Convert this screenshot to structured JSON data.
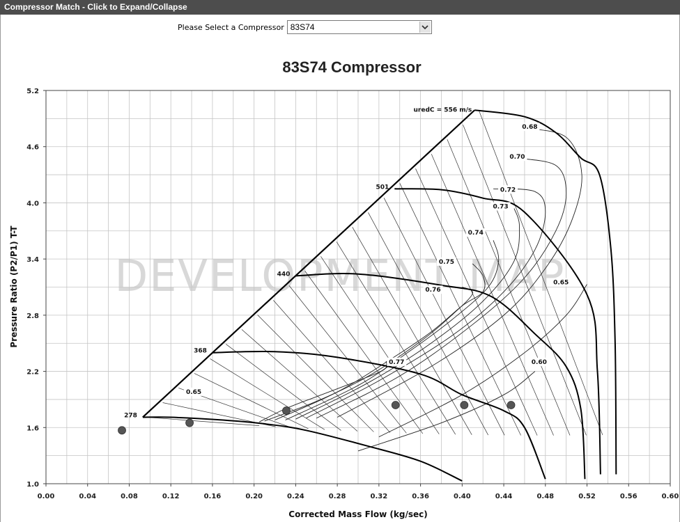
{
  "window": {
    "title": "Compressor Match - Click to Expand/Collapse"
  },
  "selector": {
    "label": "Please Select a Compressor",
    "value": "83S74"
  },
  "watermark": "DEVELOPMENT MAP",
  "chart_data": {
    "type": "line",
    "title": "83S74 Compressor",
    "xlabel": "Corrected Mass Flow (kg/sec)",
    "ylabel": "Pressure Ratio (P2/P1) T-T",
    "xlim": [
      0.0,
      0.6
    ],
    "ylim": [
      1.0,
      5.2
    ],
    "x_ticks": [
      "0.00",
      "0.04",
      "0.08",
      "0.12",
      "0.16",
      "0.20",
      "0.24",
      "0.28",
      "0.32",
      "0.36",
      "0.40",
      "0.44",
      "0.48",
      "0.52",
      "0.56",
      "0.60"
    ],
    "y_ticks": [
      "1.0",
      "1.6",
      "2.2",
      "2.8",
      "3.4",
      "4.0",
      "4.6",
      "5.2"
    ],
    "grid": true,
    "surge_line": [
      [
        0.093,
        1.71
      ],
      [
        0.412,
        4.99
      ]
    ],
    "speed_lines": [
      {
        "label": "278",
        "points": [
          [
            0.093,
            1.71
          ],
          [
            0.12,
            1.71
          ],
          [
            0.17,
            1.68
          ],
          [
            0.21,
            1.64
          ],
          [
            0.25,
            1.57
          ],
          [
            0.31,
            1.4
          ],
          [
            0.36,
            1.24
          ],
          [
            0.4,
            1.03
          ]
        ]
      },
      {
        "label": "368",
        "points": [
          [
            0.16,
            2.4
          ],
          [
            0.22,
            2.41
          ],
          [
            0.28,
            2.35
          ],
          [
            0.36,
            2.17
          ],
          [
            0.4,
            1.95
          ],
          [
            0.44,
            1.78
          ],
          [
            0.46,
            1.6
          ],
          [
            0.48,
            1.05
          ]
        ]
      },
      {
        "label": "440",
        "points": [
          [
            0.24,
            3.22
          ],
          [
            0.3,
            3.24
          ],
          [
            0.38,
            3.12
          ],
          [
            0.428,
            3.0
          ],
          [
            0.47,
            2.6
          ],
          [
            0.5,
            2.25
          ],
          [
            0.514,
            1.8
          ],
          [
            0.518,
            1.05
          ]
        ]
      },
      {
        "label": "501",
        "points": [
          [
            0.335,
            4.15
          ],
          [
            0.38,
            4.14
          ],
          [
            0.42,
            4.05
          ],
          [
            0.46,
            3.9
          ],
          [
            0.52,
            3.02
          ],
          [
            0.53,
            2.2
          ],
          [
            0.533,
            1.1
          ]
        ]
      },
      {
        "label": "uredC = 556 m/s",
        "points": [
          [
            0.412,
            4.99
          ],
          [
            0.46,
            4.92
          ],
          [
            0.49,
            4.75
          ],
          [
            0.514,
            4.48
          ],
          [
            0.532,
            4.3
          ],
          [
            0.543,
            3.5
          ],
          [
            0.547,
            2.5
          ],
          [
            0.548,
            1.1
          ]
        ]
      }
    ],
    "efficiency_islands": [
      {
        "label": "0.77",
        "label_at": [
          0.337,
          2.28
        ],
        "points": [
          [
            0.205,
            1.66
          ],
          [
            0.23,
            1.8
          ],
          [
            0.26,
            1.93
          ],
          [
            0.3,
            2.1
          ],
          [
            0.325,
            2.22
          ],
          [
            0.327,
            2.31
          ]
        ]
      },
      {
        "label": "0.76",
        "label_at": [
          0.372,
          3.05
        ],
        "points": [
          [
            0.21,
            1.67
          ],
          [
            0.26,
            1.88
          ],
          [
            0.31,
            2.15
          ],
          [
            0.36,
            2.52
          ],
          [
            0.39,
            2.8
          ],
          [
            0.41,
            3.03
          ],
          [
            0.4,
            3.1
          ]
        ]
      },
      {
        "label": "0.75",
        "label_at": [
          0.385,
          3.35
        ],
        "points": [
          [
            0.22,
            1.68
          ],
          [
            0.28,
            1.98
          ],
          [
            0.33,
            2.32
          ],
          [
            0.37,
            2.62
          ],
          [
            0.4,
            2.9
          ],
          [
            0.42,
            3.05
          ],
          [
            0.42,
            3.22
          ],
          [
            0.41,
            3.35
          ]
        ]
      },
      {
        "label": "0.74",
        "label_at": [
          0.413,
          3.66
        ],
        "points": [
          [
            0.23,
            1.68
          ],
          [
            0.3,
            2.05
          ],
          [
            0.35,
            2.42
          ],
          [
            0.39,
            2.75
          ],
          [
            0.425,
            3.1
          ],
          [
            0.435,
            3.38
          ],
          [
            0.43,
            3.6
          ]
        ]
      },
      {
        "label": "0.73",
        "label_at": [
          0.437,
          3.94
        ],
        "points": [
          [
            0.24,
            1.69
          ],
          [
            0.31,
            2.08
          ],
          [
            0.37,
            2.5
          ],
          [
            0.42,
            2.95
          ],
          [
            0.45,
            3.38
          ],
          [
            0.455,
            3.75
          ],
          [
            0.45,
            3.94
          ]
        ]
      },
      {
        "label": "0.72",
        "label_at": [
          0.444,
          4.12
        ],
        "points": [
          [
            0.25,
            1.7
          ],
          [
            0.32,
            2.1
          ],
          [
            0.39,
            2.58
          ],
          [
            0.44,
            3.05
          ],
          [
            0.47,
            3.5
          ],
          [
            0.48,
            3.9
          ],
          [
            0.47,
            4.12
          ],
          [
            0.43,
            4.15
          ]
        ]
      },
      {
        "label": "0.70",
        "label_at": [
          0.453,
          4.47
        ],
        "points": [
          [
            0.26,
            1.7
          ],
          [
            0.34,
            2.15
          ],
          [
            0.41,
            2.7
          ],
          [
            0.46,
            3.2
          ],
          [
            0.49,
            3.7
          ],
          [
            0.5,
            4.1
          ],
          [
            0.49,
            4.4
          ],
          [
            0.45,
            4.48
          ]
        ]
      },
      {
        "label": "0.68",
        "label_at": [
          0.465,
          4.79
        ],
        "points": [
          [
            0.28,
            1.71
          ],
          [
            0.37,
            2.25
          ],
          [
            0.44,
            2.8
          ],
          [
            0.48,
            3.3
          ],
          [
            0.505,
            3.8
          ],
          [
            0.515,
            4.3
          ],
          [
            0.5,
            4.7
          ],
          [
            0.46,
            4.8
          ]
        ]
      },
      {
        "label": "0.65",
        "label_at": [
          0.495,
          3.13
        ],
        "points": [
          [
            0.32,
            1.5
          ],
          [
            0.4,
            1.95
          ],
          [
            0.46,
            2.4
          ],
          [
            0.5,
            2.8
          ],
          [
            0.52,
            3.13
          ]
        ]
      },
      {
        "label": "0.60",
        "label_at": [
          0.474,
          2.28
        ],
        "points": [
          [
            0.3,
            1.35
          ],
          [
            0.38,
            1.65
          ],
          [
            0.44,
            1.95
          ],
          [
            0.47,
            2.2
          ]
        ]
      },
      {
        "label": "0.65",
        "label_at": [
          0.142,
          1.96
        ],
        "points": []
      }
    ],
    "operating_points": [
      [
        0.073,
        1.57
      ],
      [
        0.138,
        1.65
      ],
      [
        0.231,
        1.78
      ],
      [
        0.336,
        1.84
      ],
      [
        0.402,
        1.84
      ],
      [
        0.447,
        1.84
      ]
    ]
  }
}
